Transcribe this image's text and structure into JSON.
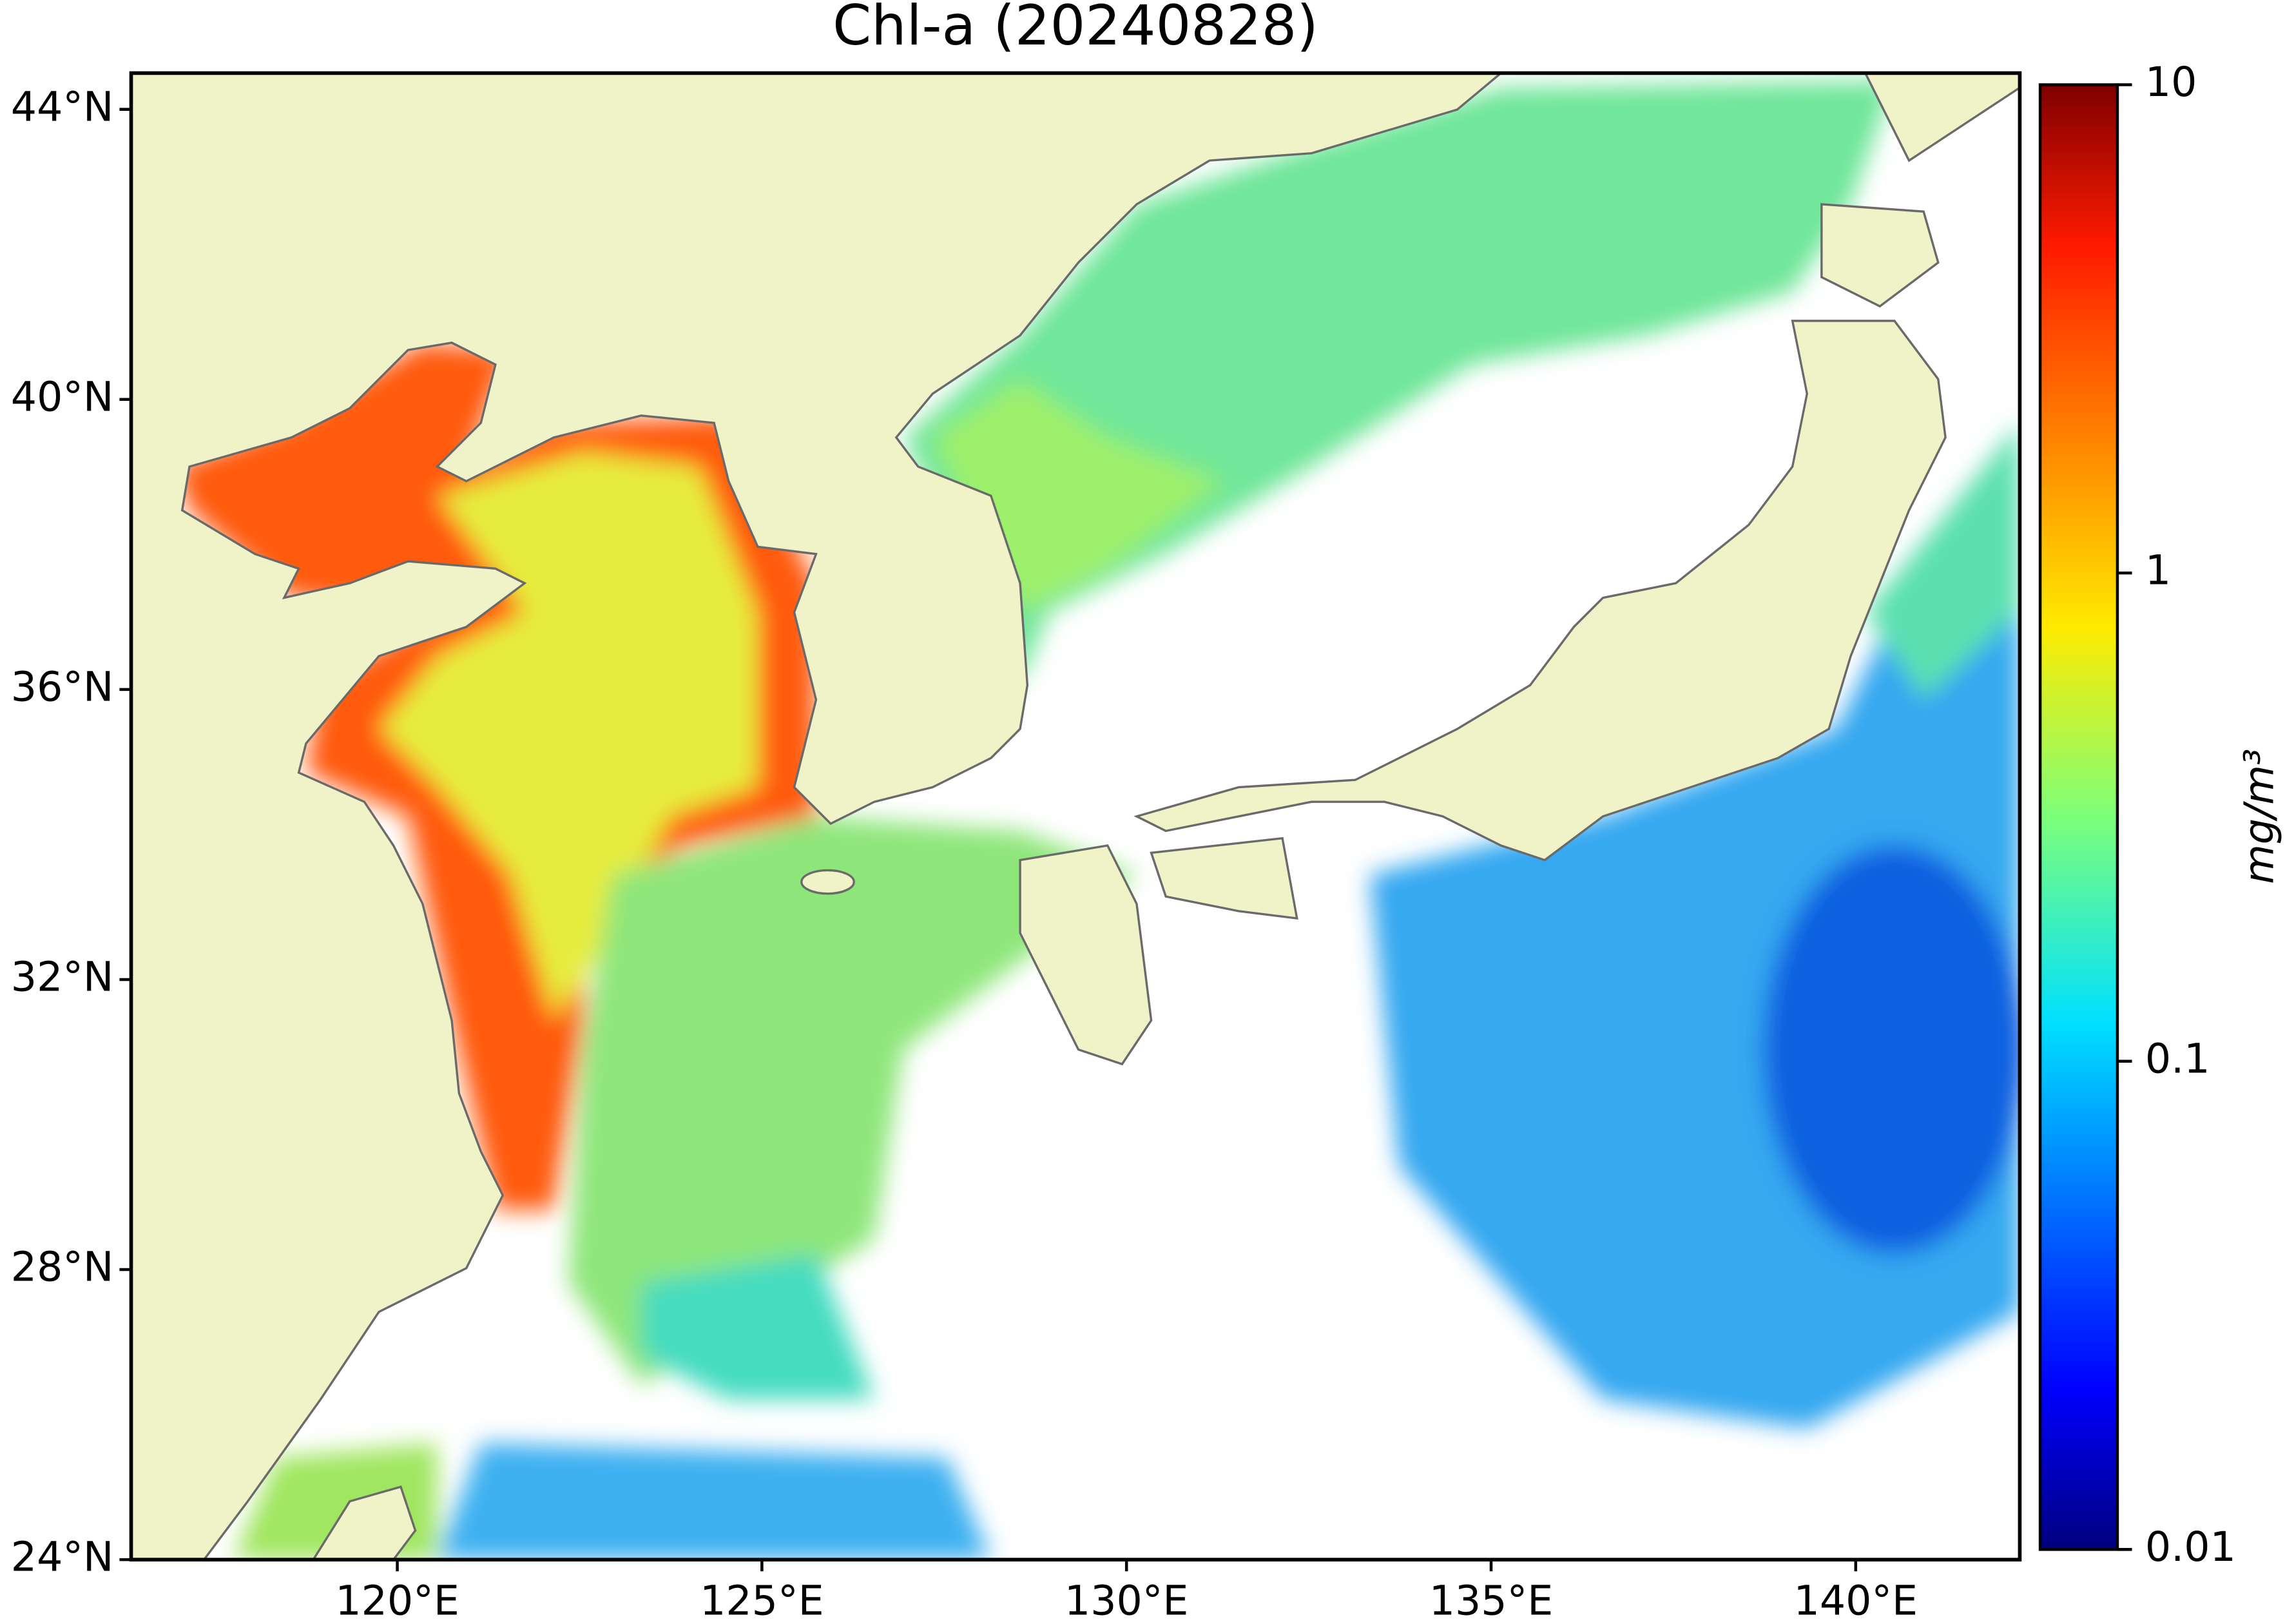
{
  "chart_data": {
    "type": "map",
    "title": "Chl-a (20240828)",
    "xlim": [
      116.35,
      142.25
    ],
    "ylim": [
      24,
      44.5
    ],
    "xticks": [
      {
        "value": 120,
        "label": "120°E"
      },
      {
        "value": 125,
        "label": "125°E"
      },
      {
        "value": 130,
        "label": "130°E"
      },
      {
        "value": 135,
        "label": "135°E"
      },
      {
        "value": 140,
        "label": "140°E"
      }
    ],
    "yticks": [
      {
        "value": 24,
        "label": "24°N"
      },
      {
        "value": 28,
        "label": "28°N"
      },
      {
        "value": 32,
        "label": "32°N"
      },
      {
        "value": 36,
        "label": "36°N"
      },
      {
        "value": 40,
        "label": "40°N"
      },
      {
        "value": 44,
        "label": "44°N"
      }
    ],
    "colorbar": {
      "label": "mg/m³",
      "scale": "log",
      "lim": [
        0.01,
        10
      ],
      "ticks": [
        0.01,
        0.1,
        1,
        10
      ],
      "colormap": "jet"
    }
  }
}
